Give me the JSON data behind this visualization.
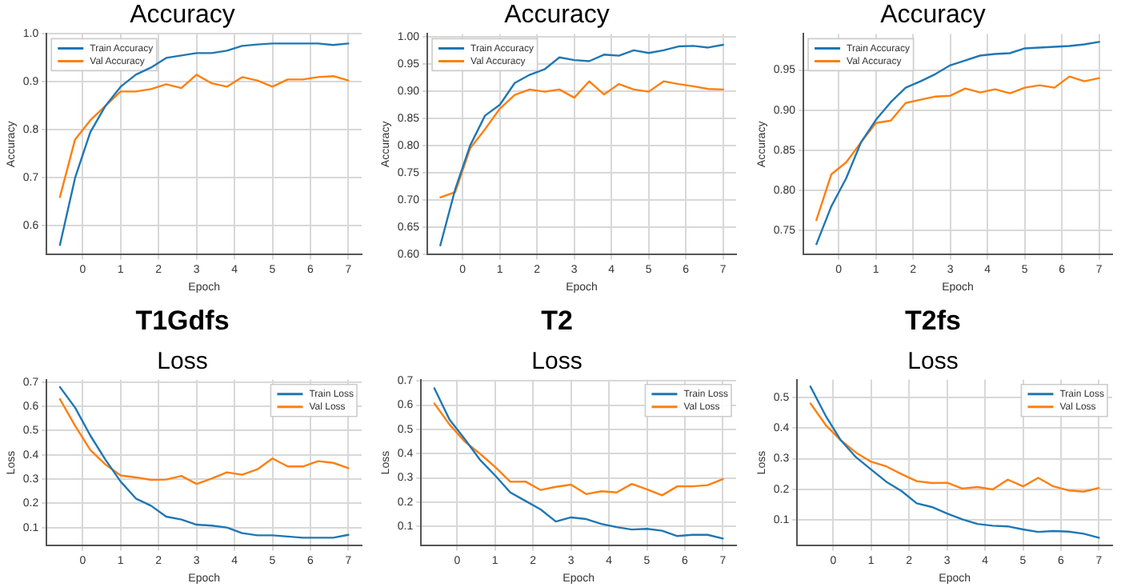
{
  "chart_data": [
    {
      "type": "line",
      "title": "Accuracy",
      "xlabel": "Epoch",
      "ylabel": "Accuracy",
      "x": [
        -0.6,
        -0.2,
        0.2,
        0.6,
        1.0,
        1.4,
        1.8,
        2.2,
        2.6,
        3.0,
        3.4,
        3.8,
        4.2,
        4.6,
        5.0,
        5.4,
        5.8,
        6.2,
        6.6,
        7.0
      ],
      "xlim": [
        -0.95,
        7.35
      ],
      "xticks": [
        0,
        1,
        2,
        3,
        4,
        5,
        6,
        7
      ],
      "ylim": [
        0.54,
        1.0
      ],
      "yticks": [
        0.6,
        0.7,
        0.8,
        0.9,
        {
          "value": 1.0,
          "label": "1.0"
        }
      ],
      "grid": true,
      "legend": "top left",
      "marker": "none",
      "series": [
        {
          "name": "Train Accuracy",
          "color": "#1f77b4",
          "values": [
            0.56,
            0.7,
            0.795,
            0.85,
            0.89,
            0.915,
            0.93,
            0.95,
            0.955,
            0.96,
            0.96,
            0.965,
            0.975,
            0.978,
            0.98,
            0.98,
            0.98,
            0.98,
            0.977,
            0.98
          ]
        },
        {
          "name": "Val Accuracy",
          "color": "#ff7f0e",
          "values": [
            0.66,
            0.78,
            0.82,
            0.85,
            0.88,
            0.88,
            0.885,
            0.895,
            0.887,
            0.915,
            0.897,
            0.89,
            0.91,
            0.903,
            0.89,
            0.905,
            0.905,
            0.91,
            0.912,
            0.903
          ]
        }
      ]
    },
    {
      "type": "line",
      "title": "Accuracy",
      "xlabel": "Epoch",
      "ylabel": "Accuracy",
      "x": [
        -0.6,
        -0.2,
        0.2,
        0.6,
        1.0,
        1.4,
        1.8,
        2.2,
        2.6,
        3.0,
        3.4,
        3.8,
        4.2,
        4.6,
        5.0,
        5.4,
        5.8,
        6.2,
        6.6,
        7.0
      ],
      "xlim": [
        -0.95,
        7.35
      ],
      "xticks": [
        0,
        1,
        2,
        3,
        4,
        5,
        6,
        7
      ],
      "ylim": [
        0.6,
        1.005
      ],
      "yticks": [
        {
          "value": 0.6,
          "label": "0.60"
        },
        0.65,
        {
          "value": 0.7,
          "label": "0.70"
        },
        0.75,
        {
          "value": 0.8,
          "label": "0.80"
        },
        0.85,
        {
          "value": 0.9,
          "label": "0.90"
        },
        0.95,
        {
          "value": 1.0,
          "label": "1.00"
        }
      ],
      "grid": true,
      "legend": "top left",
      "marker": "none",
      "series": [
        {
          "name": "Train Accuracy",
          "color": "#1f77b4",
          "values": [
            0.617,
            0.72,
            0.8,
            0.855,
            0.875,
            0.915,
            0.93,
            0.94,
            0.962,
            0.957,
            0.955,
            0.967,
            0.965,
            0.975,
            0.97,
            0.975,
            0.982,
            0.983,
            0.98,
            0.985
          ]
        },
        {
          "name": "Val Accuracy",
          "color": "#ff7f0e",
          "values": [
            0.705,
            0.715,
            0.795,
            0.83,
            0.868,
            0.893,
            0.903,
            0.899,
            0.903,
            0.888,
            0.918,
            0.894,
            0.913,
            0.903,
            0.899,
            0.918,
            0.913,
            0.909,
            0.904,
            0.903
          ]
        }
      ]
    },
    {
      "type": "line",
      "title": "Accuracy",
      "xlabel": "Epoch",
      "ylabel": "Accuracy",
      "x": [
        -0.6,
        -0.2,
        0.2,
        0.6,
        1.0,
        1.4,
        1.8,
        2.2,
        2.6,
        3.0,
        3.4,
        3.8,
        4.2,
        4.6,
        5.0,
        5.4,
        5.8,
        6.2,
        6.6,
        7.0
      ],
      "xlim": [
        -0.95,
        7.35
      ],
      "xticks": [
        0,
        1,
        2,
        3,
        4,
        5,
        6,
        7
      ],
      "ylim": [
        0.72,
        0.995
      ],
      "yticks": [
        0.75,
        {
          "value": 0.8,
          "label": "0.80"
        },
        0.85,
        {
          "value": 0.9,
          "label": "0.90"
        },
        0.95
      ],
      "grid": true,
      "legend": "top left",
      "marker": "none",
      "series": [
        {
          "name": "Train Accuracy",
          "color": "#1f77b4",
          "values": [
            0.733,
            0.78,
            0.815,
            0.86,
            0.888,
            0.91,
            0.928,
            0.936,
            0.945,
            0.956,
            0.962,
            0.968,
            0.97,
            0.971,
            0.977,
            0.978,
            0.979,
            0.98,
            0.982,
            0.985
          ]
        },
        {
          "name": "Val Accuracy",
          "color": "#ff7f0e",
          "values": [
            0.763,
            0.82,
            0.835,
            0.86,
            0.884,
            0.887,
            0.909,
            0.913,
            0.917,
            0.918,
            0.927,
            0.922,
            0.926,
            0.921,
            0.928,
            0.931,
            0.928,
            0.942,
            0.936,
            0.94
          ]
        }
      ]
    },
    {
      "type": "line",
      "title": "T1Gdfs",
      "subtitle": "Loss",
      "xlabel": "Epoch",
      "ylabel": "Loss",
      "x": [
        -0.6,
        -0.2,
        0.2,
        0.6,
        1.0,
        1.4,
        1.8,
        2.2,
        2.6,
        3.0,
        3.4,
        3.8,
        4.2,
        4.6,
        5.0,
        5.4,
        5.8,
        6.2,
        6.6,
        7.0
      ],
      "xlim": [
        -0.95,
        7.35
      ],
      "xticks": [
        0,
        1,
        2,
        3,
        4,
        5,
        6,
        7
      ],
      "ylim": [
        0.025,
        0.71
      ],
      "yticks": [
        0.1,
        0.2,
        0.3,
        0.4,
        0.5,
        0.6,
        0.7
      ],
      "grid": true,
      "legend": "top right",
      "marker": "none",
      "series": [
        {
          "name": "Train Loss",
          "color": "#1f77b4",
          "values": [
            0.68,
            0.595,
            0.48,
            0.38,
            0.29,
            0.22,
            0.19,
            0.145,
            0.133,
            0.112,
            0.108,
            0.1,
            0.077,
            0.068,
            0.068,
            0.063,
            0.058,
            0.058,
            0.058,
            0.07
          ]
        },
        {
          "name": "Val Loss",
          "color": "#ff7f0e",
          "values": [
            0.63,
            0.52,
            0.42,
            0.36,
            0.315,
            0.307,
            0.297,
            0.298,
            0.313,
            0.28,
            0.302,
            0.328,
            0.318,
            0.34,
            0.385,
            0.352,
            0.352,
            0.374,
            0.367,
            0.345
          ]
        }
      ]
    },
    {
      "type": "line",
      "title": "T2",
      "subtitle": "Loss",
      "xlabel": "Epoch",
      "ylabel": "Loss",
      "x": [
        -0.6,
        -0.2,
        0.2,
        0.6,
        1.0,
        1.4,
        1.8,
        2.2,
        2.6,
        3.0,
        3.4,
        3.8,
        4.2,
        4.6,
        5.0,
        5.4,
        5.8,
        6.2,
        6.6,
        7.0
      ],
      "xlim": [
        -0.95,
        7.35
      ],
      "xticks": [
        0,
        1,
        2,
        3,
        4,
        5,
        6,
        7
      ],
      "ylim": [
        0.02,
        0.705
      ],
      "yticks": [
        0.1,
        0.2,
        0.3,
        0.4,
        0.5,
        0.6,
        0.7
      ],
      "grid": true,
      "legend": "top right",
      "marker": "none",
      "series": [
        {
          "name": "Train Loss",
          "color": "#1f77b4",
          "values": [
            0.67,
            0.54,
            0.46,
            0.375,
            0.31,
            0.24,
            0.205,
            0.17,
            0.12,
            0.137,
            0.13,
            0.11,
            0.097,
            0.087,
            0.09,
            0.082,
            0.06,
            0.065,
            0.065,
            0.05
          ]
        },
        {
          "name": "Val Loss",
          "color": "#ff7f0e",
          "values": [
            0.607,
            0.52,
            0.45,
            0.4,
            0.345,
            0.284,
            0.285,
            0.25,
            0.263,
            0.272,
            0.233,
            0.245,
            0.24,
            0.275,
            0.253,
            0.228,
            0.265,
            0.265,
            0.27,
            0.295
          ]
        }
      ]
    },
    {
      "type": "line",
      "title": "T2fs",
      "subtitle": "Loss",
      "xlabel": "Epoch",
      "ylabel": "Loss",
      "x": [
        -0.6,
        -0.2,
        0.2,
        0.6,
        1.0,
        1.4,
        1.8,
        2.2,
        2.6,
        3.0,
        3.4,
        3.8,
        4.2,
        4.6,
        5.0,
        5.4,
        5.8,
        6.2,
        6.6,
        7.0
      ],
      "xlim": [
        -0.95,
        7.35
      ],
      "xticks": [
        0,
        1,
        2,
        3,
        4,
        5,
        6,
        7
      ],
      "ylim": [
        0.017,
        0.557
      ],
      "yticks": [
        0.1,
        0.2,
        0.3,
        0.4,
        0.5
      ],
      "grid": true,
      "legend": "top right",
      "marker": "none",
      "series": [
        {
          "name": "Train Loss",
          "color": "#1f77b4",
          "values": [
            0.535,
            0.44,
            0.36,
            0.305,
            0.265,
            0.225,
            0.195,
            0.155,
            0.143,
            0.122,
            0.103,
            0.088,
            0.082,
            0.08,
            0.07,
            0.062,
            0.065,
            0.063,
            0.056,
            0.043
          ]
        },
        {
          "name": "Val Loss",
          "color": "#ff7f0e",
          "values": [
            0.48,
            0.41,
            0.36,
            0.32,
            0.29,
            0.275,
            0.25,
            0.227,
            0.221,
            0.222,
            0.203,
            0.208,
            0.2,
            0.232,
            0.21,
            0.238,
            0.21,
            0.197,
            0.193,
            0.205
          ]
        }
      ]
    }
  ]
}
